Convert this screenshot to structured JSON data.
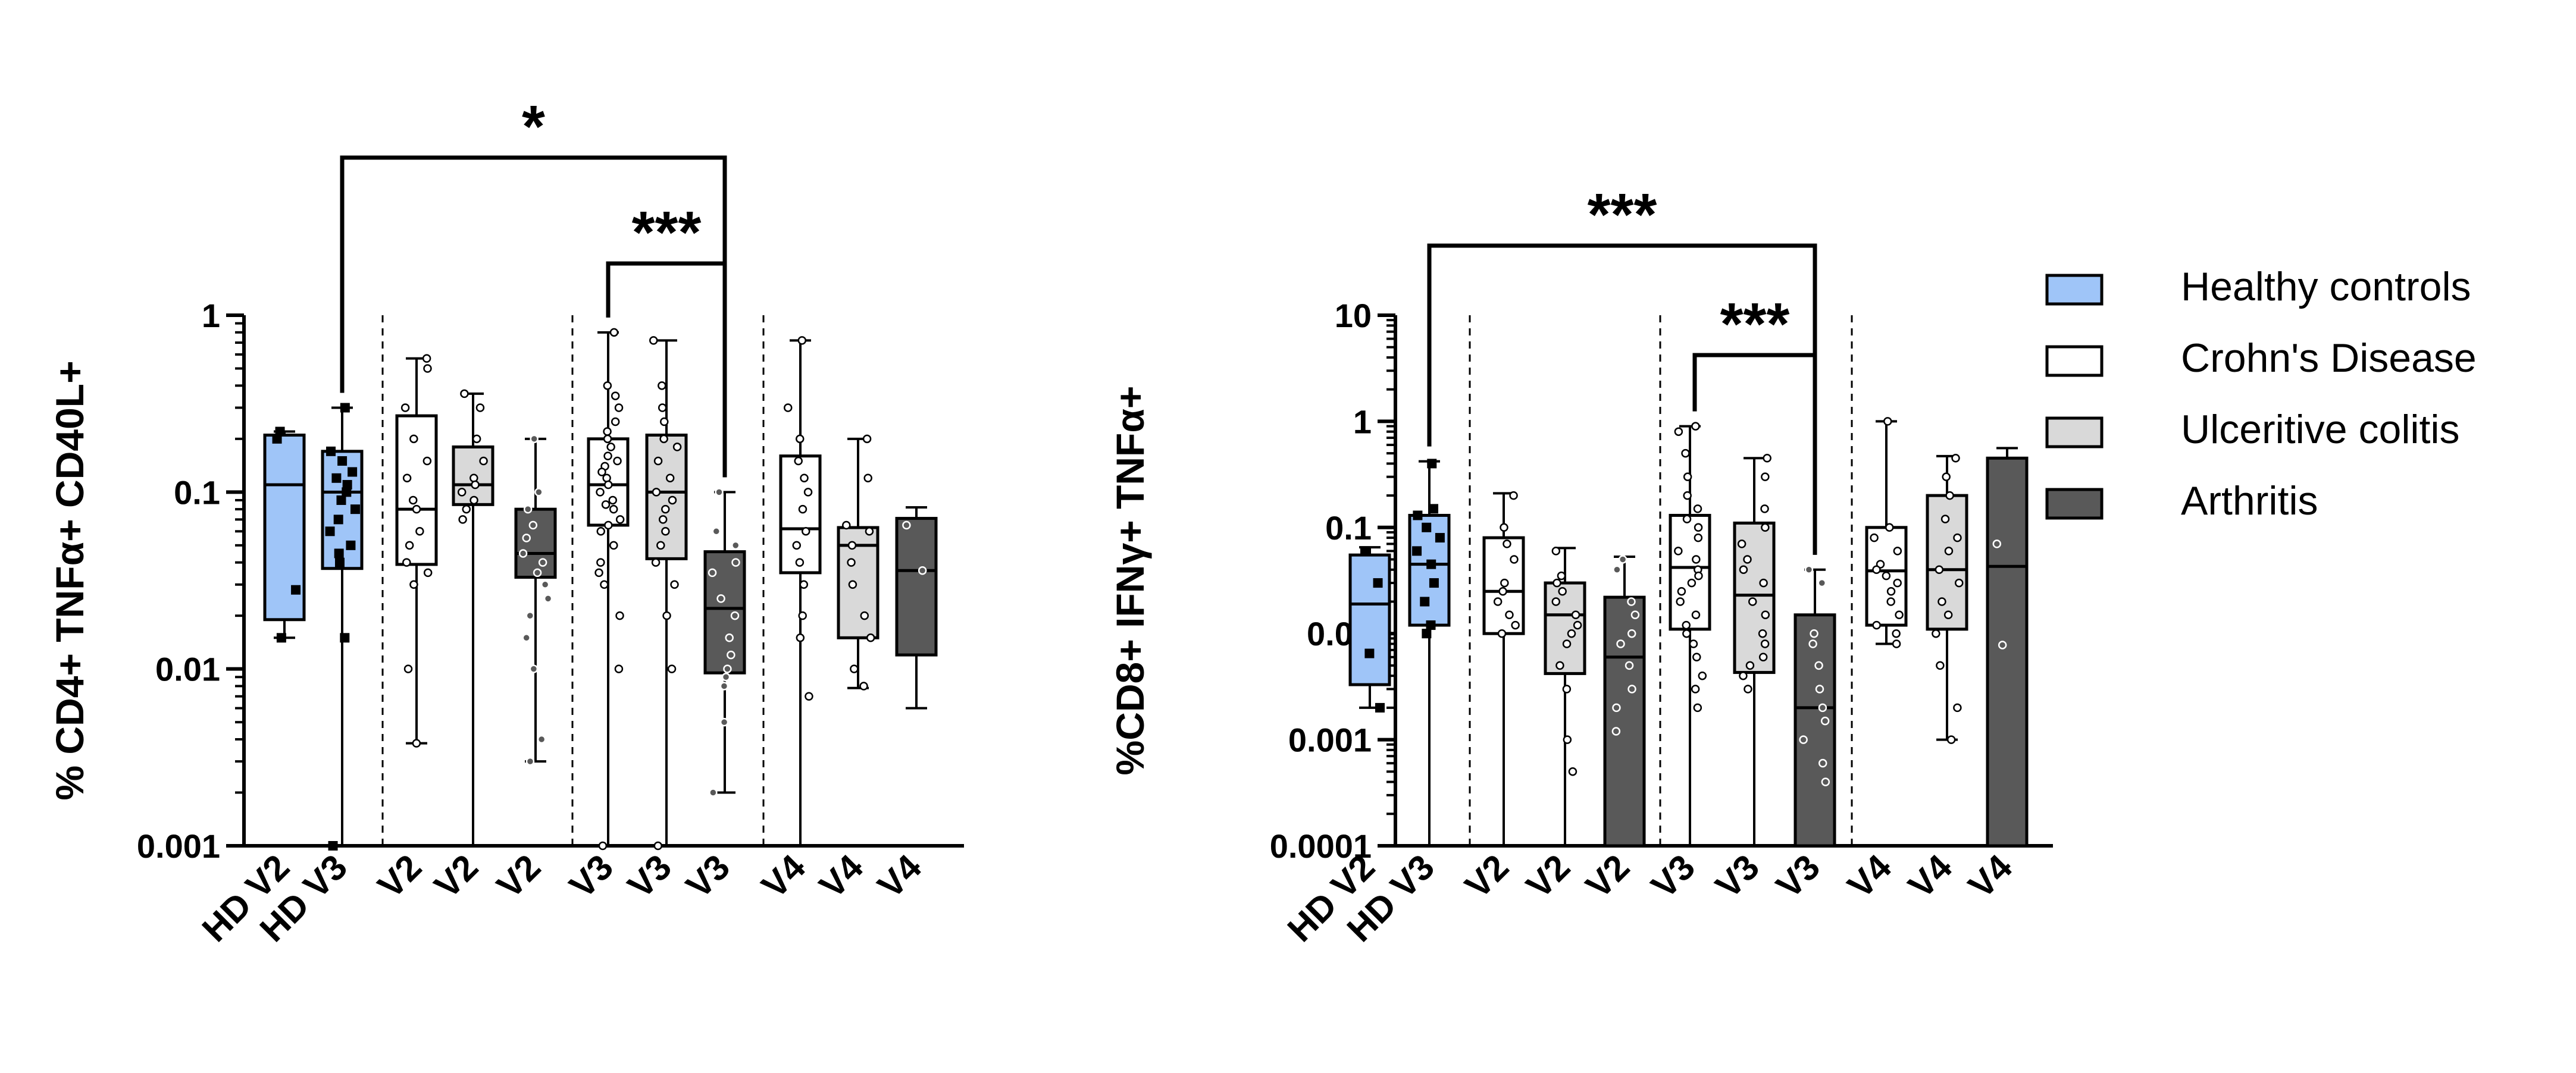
{
  "chart_data": [
    {
      "type": "box",
      "title": "",
      "xlabel": "",
      "ylabel": "% CD4+ TNFα+ CD40L+",
      "yscale": "log",
      "ylim": [
        0.001,
        1
      ],
      "yticks": [
        "1",
        "0.1",
        "0.01",
        "0.001"
      ],
      "categories": [
        "HD V2",
        "HD V3",
        "V2",
        "V2",
        "V2",
        "V3",
        "V3",
        "V3",
        "V4",
        "V4",
        "V4"
      ],
      "group": [
        "Healthy controls",
        "Healthy controls",
        "Crohn's Disease",
        "Ulceritive colitis",
        "Arthritis",
        "Crohn's Disease",
        "Ulceritive colitis",
        "Arthritis",
        "Crohn's Disease",
        "Ulceritive colitis",
        "Arthritis"
      ],
      "boxes": [
        {
          "min": 0.015,
          "q1": 0.019,
          "median": 0.11,
          "q3": 0.21,
          "max": 0.22,
          "points": [
            0.22,
            0.2,
            0.028,
            0.015
          ]
        },
        {
          "min": 0.001,
          "q1": 0.037,
          "median": 0.1,
          "q3": 0.17,
          "max": 0.3,
          "points": [
            0.3,
            0.17,
            0.15,
            0.13,
            0.12,
            0.11,
            0.1,
            0.09,
            0.08,
            0.07,
            0.06,
            0.05,
            0.045,
            0.04,
            0.015,
            0.001
          ]
        },
        {
          "min": 0.0038,
          "q1": 0.039,
          "median": 0.08,
          "q3": 0.27,
          "max": 0.57,
          "points": [
            0.57,
            0.5,
            0.3,
            0.2,
            0.15,
            0.12,
            0.09,
            0.08,
            0.06,
            0.05,
            0.04,
            0.035,
            0.03,
            0.01,
            0.0038
          ]
        },
        {
          "min": 0.001,
          "q1": 0.085,
          "median": 0.11,
          "q3": 0.18,
          "max": 0.36,
          "points": [
            0.36,
            0.3,
            0.2,
            0.15,
            0.12,
            0.11,
            0.1,
            0.09,
            0.08,
            0.07
          ]
        },
        {
          "min": 0.003,
          "q1": 0.033,
          "median": 0.045,
          "q3": 0.08,
          "max": 0.2,
          "points": [
            0.2,
            0.1,
            0.08,
            0.065,
            0.055,
            0.045,
            0.04,
            0.035,
            0.03,
            0.025,
            0.02,
            0.015,
            0.01,
            0.004,
            0.003
          ]
        },
        {
          "min": 0.001,
          "q1": 0.065,
          "median": 0.11,
          "q3": 0.2,
          "max": 0.8,
          "points": [
            0.8,
            0.4,
            0.35,
            0.3,
            0.25,
            0.22,
            0.2,
            0.18,
            0.16,
            0.15,
            0.14,
            0.13,
            0.12,
            0.11,
            0.1,
            0.09,
            0.085,
            0.08,
            0.07,
            0.065,
            0.06,
            0.05,
            0.04,
            0.035,
            0.03,
            0.02,
            0.01,
            0.001
          ]
        },
        {
          "min": 0.001,
          "q1": 0.042,
          "median": 0.1,
          "q3": 0.21,
          "max": 0.72,
          "points": [
            0.72,
            0.4,
            0.3,
            0.25,
            0.2,
            0.18,
            0.15,
            0.12,
            0.1,
            0.09,
            0.08,
            0.07,
            0.06,
            0.05,
            0.04,
            0.03,
            0.02,
            0.01,
            0.001
          ]
        },
        {
          "min": 0.002,
          "q1": 0.0095,
          "median": 0.022,
          "q3": 0.046,
          "max": 0.1,
          "points": [
            0.1,
            0.06,
            0.05,
            0.04,
            0.035,
            0.025,
            0.02,
            0.015,
            0.012,
            0.01,
            0.009,
            0.008,
            0.005,
            0.002
          ]
        },
        {
          "min": 0.001,
          "q1": 0.035,
          "median": 0.062,
          "q3": 0.16,
          "max": 0.72,
          "points": [
            0.72,
            0.3,
            0.2,
            0.15,
            0.12,
            0.1,
            0.08,
            0.06,
            0.05,
            0.04,
            0.03,
            0.02,
            0.015,
            0.007
          ]
        },
        {
          "min": 0.0078,
          "q1": 0.015,
          "median": 0.05,
          "q3": 0.063,
          "max": 0.2,
          "points": [
            0.2,
            0.12,
            0.065,
            0.06,
            0.05,
            0.04,
            0.03,
            0.02,
            0.015,
            0.01,
            0.008
          ]
        },
        {
          "min": 0.006,
          "q1": 0.012,
          "median": 0.036,
          "q3": 0.071,
          "max": 0.082,
          "points": [
            0.065,
            0.036
          ]
        }
      ],
      "annotations": [
        {
          "from": "HD V3",
          "to": "V3 (Arthritis)",
          "label": "*"
        },
        {
          "from": "V3 (Crohn's Disease)",
          "to": "V3 (Arthritis)",
          "label": "***"
        }
      ]
    },
    {
      "type": "box",
      "title": "",
      "xlabel": "",
      "ylabel": "%CD8+ IFNγ+ TNFα+",
      "yscale": "log",
      "ylim": [
        0.0001,
        10
      ],
      "yticks": [
        "10",
        "1",
        "0.1",
        "0.01",
        "0.001",
        "0.0001"
      ],
      "categories": [
        "HD V2",
        "HD V3",
        "V2",
        "V2",
        "V2",
        "V3",
        "V3",
        "V3",
        "V4",
        "V4",
        "V4"
      ],
      "group": [
        "Healthy controls",
        "Healthy controls",
        "Crohn's Disease",
        "Ulceritive colitis",
        "Arthritis",
        "Crohn's Disease",
        "Ulceritive colitis",
        "Arthritis",
        "Crohn's Disease",
        "Ulceritive colitis",
        "Arthritis"
      ],
      "boxes": [
        {
          "min": 0.002,
          "q1": 0.0033,
          "median": 0.019,
          "q3": 0.055,
          "max": 0.065,
          "points": [
            0.06,
            0.03,
            0.0065,
            0.002
          ]
        },
        {
          "min": 0.0001,
          "q1": 0.012,
          "median": 0.045,
          "q3": 0.13,
          "max": 0.42,
          "points": [
            0.4,
            0.15,
            0.13,
            0.1,
            0.08,
            0.06,
            0.045,
            0.03,
            0.02,
            0.012,
            0.01
          ]
        },
        {
          "min": 0.0001,
          "q1": 0.01,
          "median": 0.025,
          "q3": 0.08,
          "max": 0.21,
          "points": [
            0.2,
            0.1,
            0.07,
            0.05,
            0.03,
            0.025,
            0.02,
            0.015,
            0.012,
            0.01
          ]
        },
        {
          "min": 0.0001,
          "q1": 0.0042,
          "median": 0.015,
          "q3": 0.03,
          "max": 0.064,
          "points": [
            0.06,
            0.035,
            0.03,
            0.025,
            0.02,
            0.015,
            0.012,
            0.01,
            0.008,
            0.005,
            0.003,
            0.001,
            0.0005
          ]
        },
        {
          "min": 0.0001,
          "q1": 0.0001,
          "median": 0.006,
          "q3": 0.022,
          "max": 0.053,
          "points": [
            0.05,
            0.04,
            0.02,
            0.015,
            0.01,
            0.008,
            0.005,
            0.003,
            0.002,
            0.0012
          ]
        },
        {
          "min": 0.0001,
          "q1": 0.011,
          "median": 0.042,
          "q3": 0.13,
          "max": 0.9,
          "points": [
            0.9,
            0.8,
            0.5,
            0.3,
            0.2,
            0.15,
            0.12,
            0.1,
            0.08,
            0.06,
            0.05,
            0.04,
            0.035,
            0.03,
            0.025,
            0.02,
            0.015,
            0.012,
            0.01,
            0.008,
            0.006,
            0.004,
            0.003,
            0.002
          ]
        },
        {
          "min": 0.0001,
          "q1": 0.0043,
          "median": 0.023,
          "q3": 0.11,
          "max": 0.45,
          "points": [
            0.45,
            0.3,
            0.15,
            0.1,
            0.07,
            0.05,
            0.04,
            0.03,
            0.02,
            0.015,
            0.01,
            0.008,
            0.006,
            0.005,
            0.004,
            0.003
          ]
        },
        {
          "min": 0.0001,
          "q1": 0.0001,
          "median": 0.002,
          "q3": 0.015,
          "max": 0.04,
          "points": [
            0.04,
            0.03,
            0.01,
            0.008,
            0.005,
            0.003,
            0.002,
            0.0015,
            0.001,
            0.0006,
            0.0004
          ]
        },
        {
          "min": 0.008,
          "q1": 0.012,
          "median": 0.039,
          "q3": 0.1,
          "max": 1.0,
          "points": [
            1.0,
            0.1,
            0.08,
            0.06,
            0.045,
            0.04,
            0.035,
            0.03,
            0.025,
            0.02,
            0.015,
            0.012,
            0.01,
            0.008
          ]
        },
        {
          "min": 0.001,
          "q1": 0.011,
          "median": 0.04,
          "q3": 0.2,
          "max": 0.47,
          "points": [
            0.45,
            0.3,
            0.2,
            0.12,
            0.08,
            0.06,
            0.04,
            0.03,
            0.02,
            0.015,
            0.01,
            0.005,
            0.002,
            0.001
          ]
        },
        {
          "min": 0.0001,
          "q1": 0.0001,
          "median": 0.043,
          "q3": 0.45,
          "max": 0.56,
          "points": [
            0.07,
            0.0078
          ]
        }
      ],
      "annotations": [
        {
          "from": "HD V3",
          "to": "V3 (Arthritis)",
          "label": "***"
        },
        {
          "from": "V3 (Crohn's Disease)",
          "to": "V3 (Arthritis)",
          "label": "***"
        }
      ]
    }
  ],
  "legend": {
    "placement": "right",
    "items": [
      {
        "label": "Healthy controls",
        "color": "#9fc5f8"
      },
      {
        "label": "Crohn's Disease",
        "color": "#ffffff"
      },
      {
        "label": "Ulceritive colitis",
        "color": "#d9d9d9"
      },
      {
        "label": "Arthritis",
        "color": "#595959"
      }
    ]
  },
  "colors": {
    "Healthy controls": "#9fc5f8",
    "Crohn's Disease": "#ffffff",
    "Ulceritive colitis": "#d9d9d9",
    "Arthritis": "#595959"
  }
}
